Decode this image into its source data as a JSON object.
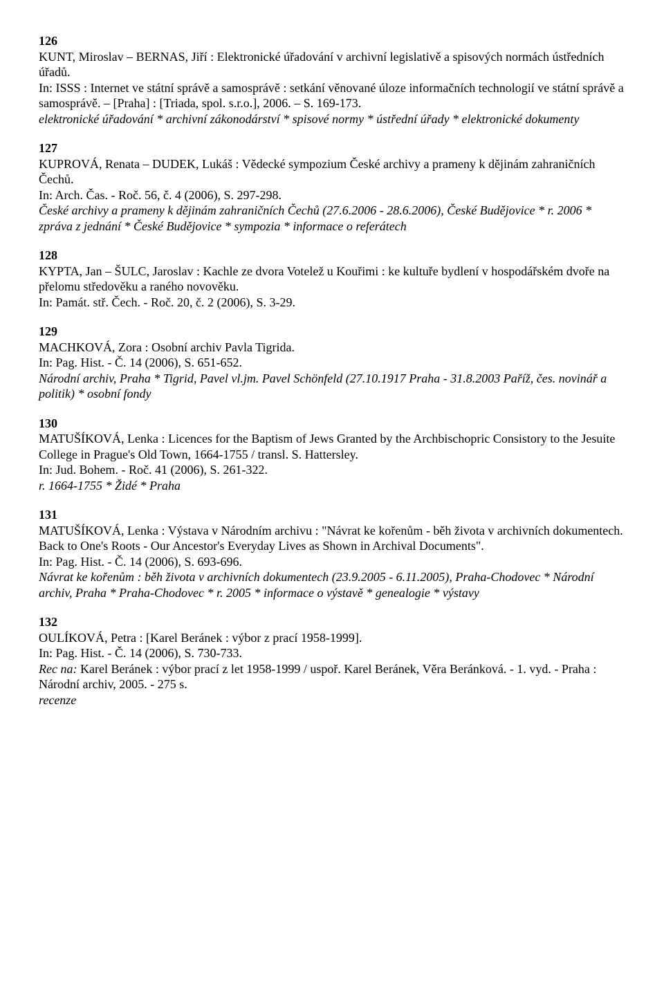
{
  "entries": [
    {
      "num": "126",
      "lines": [
        {
          "text": "KUNT, Miroslav – BERNAS, Jiří : Elektronické úřadování v archivní legislativě a spisových normách ústředních úřadů.",
          "italic": false
        },
        {
          "text": "In: ISSS : Internet ve státní správě a samosprávě : setkání věnované úloze informačních technologií ve státní správě a samosprávě. – [Praha] : [Triada, spol. s.r.o.], 2006. – S. 169-173.",
          "italic": false
        },
        {
          "text": "elektronické úřadování * archivní zákonodárství * spisové normy * ústřední úřady * elektronické dokumenty",
          "italic": true
        }
      ]
    },
    {
      "num": "127",
      "lines": [
        {
          "text": "KUPROVÁ, Renata – DUDEK, Lukáš : Vědecké sympozium České archivy a prameny k dějinám zahraničních Čechů.",
          "italic": false
        },
        {
          "text": "In: Arch. Čas. - Roč. 56, č. 4 (2006), S. 297-298.",
          "italic": false
        },
        {
          "text": "České archivy a prameny k dějinám zahraničních Čechů (27.6.2006 - 28.6.2006), České Budějovice * r. 2006 * zpráva z jednání * České Budějovice * sympozia * informace o referátech",
          "italic": true
        }
      ]
    },
    {
      "num": "128",
      "lines": [
        {
          "text": "KYPTA, Jan – ŠULC, Jaroslav : Kachle ze dvora Votelež u Kouřimi : ke kultuře bydlení v hospodářském dvoře na přelomu středověku a raného novověku.",
          "italic": false
        },
        {
          "text": "In: Památ. stř. Čech. - Roč. 20, č. 2 (2006), S. 3-29.",
          "italic": false
        }
      ]
    },
    {
      "num": "129",
      "lines": [
        {
          "text": "MACHKOVÁ, Zora : Osobní archiv Pavla Tigrida.",
          "italic": false
        },
        {
          "text": "In: Pag. Hist. - Č. 14 (2006), S. 651-652.",
          "italic": false
        },
        {
          "text": "Národní archiv, Praha * Tigrid, Pavel vl.jm. Pavel Schönfeld (27.10.1917 Praha - 31.8.2003 Paříž, čes. novinář a politik) * osobní fondy",
          "italic": true
        }
      ]
    },
    {
      "num": "130",
      "lines": [
        {
          "text": "MATUŠÍKOVÁ, Lenka : Licences for the Baptism of Jews Granted by the Archbischopric Consistory to the Jesuite College in Prague's Old Town, 1664-1755 / transl. S. Hattersley.",
          "italic": false
        },
        {
          "text": "In: Jud. Bohem. - Roč. 41 (2006), S. 261-322.",
          "italic": false
        },
        {
          "text": "r. 1664-1755 * Židé * Praha",
          "italic": true
        }
      ]
    },
    {
      "num": "131",
      "lines": [
        {
          "text": "MATUŠÍKOVÁ, Lenka : Výstava v Národním archivu : \"Návrat ke kořenům - běh života v archivních dokumentech. Back to One's Roots - Our Ancestor's Everyday Lives as Shown in Archival Documents\".",
          "italic": false
        },
        {
          "text": "In: Pag. Hist. - Č. 14 (2006), S. 693-696.",
          "italic": false
        },
        {
          "text": "Návrat ke kořenům : běh života v archivních dokumentech (23.9.2005 - 6.11.2005), Praha-Chodovec * Národní archiv, Praha * Praha-Chodovec * r. 2005 * informace o výstavě * genealogie * výstavy",
          "italic": true
        }
      ]
    },
    {
      "num": "132",
      "lines": [
        {
          "text": "OULÍKOVÁ, Petra : [Karel Beránek : výbor z prací 1958-1999].",
          "italic": false
        },
        {
          "text": "In: Pag. Hist. - Č. 14 (2006), S. 730-733.",
          "italic": false
        },
        {
          "text": "Rec na:",
          "italic": true,
          "inline_after": " Karel Beránek : výbor prací z let 1958-1999 / uspoř. Karel Beránek, Věra Beránková. - 1. vyd. - Praha : Národní archiv, 2005. - 275 s."
        },
        {
          "text": "recenze",
          "italic": true
        }
      ]
    }
  ]
}
